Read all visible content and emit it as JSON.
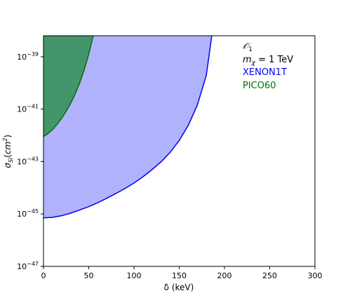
{
  "chart_data": {
    "type": "area",
    "title": "",
    "xlabel": "δ (keV)",
    "ylabel": "σSI(cm²)",
    "xlim": [
      0,
      300
    ],
    "ylim_log10": [
      -47,
      -38.2
    ],
    "log_y": true,
    "grid": false,
    "x_ticks": [
      "0",
      "50",
      "100",
      "150",
      "200",
      "250",
      "300"
    ],
    "y_ticks": [
      {
        "base": "10",
        "exp": "−47",
        "log10": -47
      },
      {
        "base": "10",
        "exp": "−45",
        "log10": -45
      },
      {
        "base": "10",
        "exp": "−43",
        "log10": -43
      },
      {
        "base": "10",
        "exp": "−41",
        "log10": -41
      },
      {
        "base": "10",
        "exp": "−39",
        "log10": -39
      }
    ],
    "annotations": {
      "operator": "𝒪",
      "operator_sub": "1",
      "mass_symbol": "m",
      "mass_sub": "χ",
      "mass_value": " = 1 TeV"
    },
    "series": [
      {
        "name": "XENON1T",
        "color": "#0000ee",
        "fill": "#b0b3fb",
        "boundary": {
          "x": [
            0,
            10,
            20,
            30,
            40,
            50,
            60,
            70,
            80,
            90,
            100,
            110,
            120,
            130,
            140,
            150,
            160,
            170,
            180,
            186
          ],
          "log10_y": [
            -45.15,
            -45.13,
            -45.07,
            -44.97,
            -44.85,
            -44.72,
            -44.57,
            -44.4,
            -44.22,
            -44.03,
            -43.82,
            -43.58,
            -43.31,
            -43.01,
            -42.65,
            -42.2,
            -41.62,
            -40.85,
            -39.7,
            -38.2
          ]
        }
      },
      {
        "name": "PICO60",
        "color": "#007000",
        "fill": "#44956a",
        "boundary": {
          "x": [
            0,
            5,
            10,
            15,
            20,
            25,
            30,
            35,
            40,
            45,
            50,
            55
          ],
          "log10_y": [
            -42.05,
            -41.93,
            -41.78,
            -41.58,
            -41.35,
            -41.08,
            -40.78,
            -40.42,
            -40.0,
            -39.5,
            -38.9,
            -38.2
          ]
        }
      }
    ],
    "legend": [
      "XENON1T",
      "PICO60"
    ],
    "legend_placement": "top-right"
  }
}
